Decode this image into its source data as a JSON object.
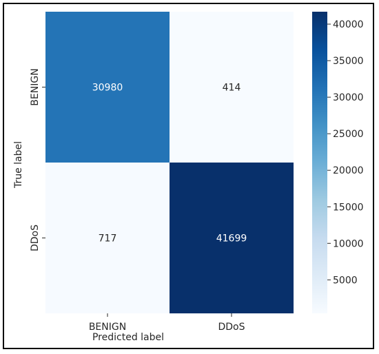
{
  "chart_data": {
    "type": "heatmap",
    "title": "",
    "xlabel": "Predicted label",
    "ylabel": "True label",
    "x_categories": [
      "BENIGN",
      "DDoS"
    ],
    "y_categories": [
      "BENIGN",
      "DDoS"
    ],
    "values": [
      [
        30980,
        414
      ],
      [
        717,
        41699
      ]
    ],
    "colormap": "Blues",
    "colorbar": {
      "min": 414,
      "max": 41699,
      "ticks": [
        5000,
        10000,
        15000,
        20000,
        25000,
        30000,
        35000,
        40000
      ]
    },
    "annotation_color_light": "#ffffff",
    "annotation_color_dark": "#262626"
  }
}
